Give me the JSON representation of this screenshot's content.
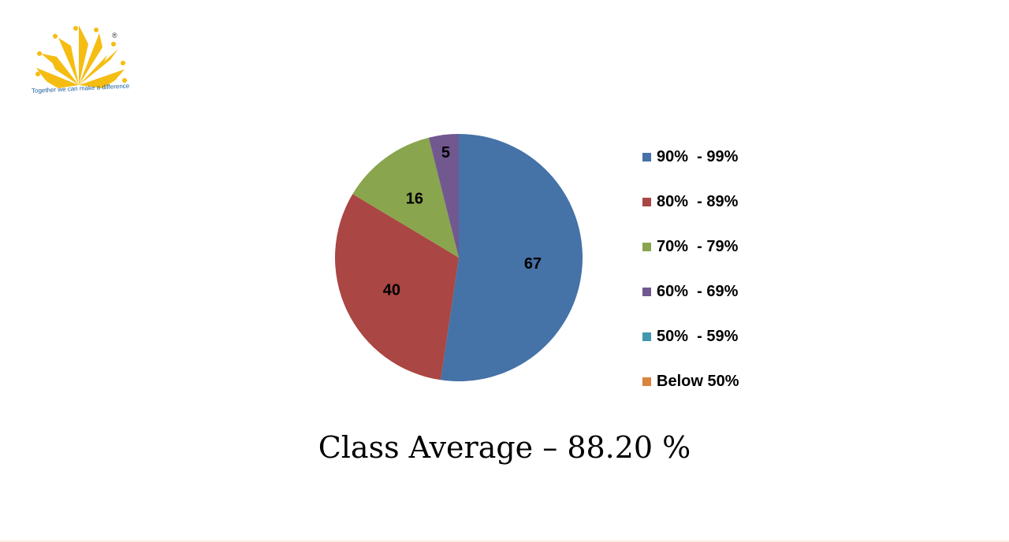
{
  "logo": {
    "tagline": "Together we can make a difference",
    "registered_mark": "®",
    "color": "#f5bd12"
  },
  "chart_data": {
    "type": "pie",
    "categories": [
      "90%  - 99%",
      "80%  - 89%",
      "70%  - 79%",
      "60%  - 69%",
      "50%  - 59%",
      "Below 50%"
    ],
    "values": [
      67,
      40,
      16,
      5,
      0,
      0
    ],
    "value_labels": [
      "67",
      "40",
      "16",
      "5",
      "",
      ""
    ],
    "colors": [
      "#4572a7",
      "#aa4643",
      "#89a54e",
      "#71588f",
      "#4198af",
      "#db843d"
    ],
    "legend_placement": "right"
  },
  "caption": "Class Average – 88.20 %"
}
